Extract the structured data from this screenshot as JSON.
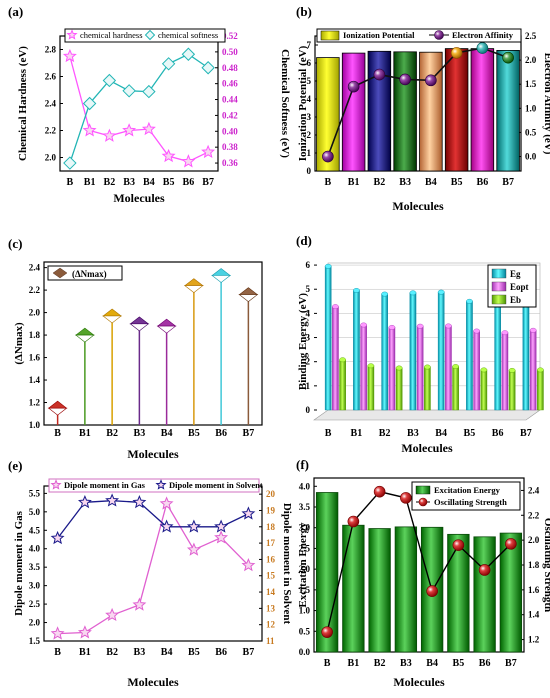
{
  "chart_data": [
    {
      "panel": "(a)",
      "type": "line",
      "categories": [
        "B",
        "B1",
        "B2",
        "B3",
        "B4",
        "B5",
        "B6",
        "B7"
      ],
      "xlabel": "Molecules",
      "ylabel": "Chemical Hardness (eV)",
      "y2label": "Chemical Softness (eV)",
      "ylim": [
        1.9,
        2.9
      ],
      "y2lim": [
        0.35,
        0.52
      ],
      "yticks": [
        "2.0",
        "2.2",
        "2.4",
        "2.6",
        "2.8"
      ],
      "y2ticks": [
        "0.36",
        "0.38",
        "0.40",
        "0.42",
        "0.44",
        "0.46",
        "0.48",
        "0.50",
        "0.52"
      ],
      "legend_position": "top",
      "series": [
        {
          "name": "chemical hardness",
          "axis": "left",
          "color": "#ff55ff",
          "marker": "star",
          "values": [
            2.75,
            2.2,
            2.16,
            2.2,
            2.21,
            2.01,
            1.97,
            2.04
          ]
        },
        {
          "name": "chemical softness",
          "axis": "right",
          "color": "#22b5b5",
          "marker": "diamond",
          "values": [
            0.36,
            0.435,
            0.464,
            0.451,
            0.45,
            0.485,
            0.497,
            0.48
          ]
        }
      ]
    },
    {
      "panel": "(b)",
      "type": "bar",
      "categories": [
        "B",
        "B1",
        "B2",
        "B3",
        "B4",
        "B5",
        "B6",
        "B7"
      ],
      "xlabel": "Molecules",
      "ylabel": "Ionization Potential (eV)",
      "y2label": "Electron Affinity (eV)",
      "ylim": [
        0,
        7.5
      ],
      "y2lim": [
        -0.3,
        2.5
      ],
      "yticks": [
        "0",
        "1",
        "2",
        "3",
        "4",
        "5",
        "6",
        "7"
      ],
      "y2ticks": [
        "0.0",
        "0.5",
        "1.0",
        "1.5",
        "2.0",
        "2.5"
      ],
      "legend_position": "top",
      "series": [
        {
          "name": "Ionization Potential",
          "axis": "left",
          "values": [
            6.3,
            6.55,
            6.65,
            6.62,
            6.6,
            6.8,
            6.8,
            6.7
          ],
          "colors": [
            "#e8e800",
            "#dd22dd",
            "#1a1a8a",
            "#1a7a1a",
            "#f0a070",
            "#b00000",
            "#e020c0",
            "#20a8a8"
          ]
        },
        {
          "name": "Electron Affinity",
          "axis": "right",
          "color": "#111111",
          "marker": "sphere",
          "marker_color": "#8a2a9a",
          "values": [
            0.0,
            1.45,
            1.7,
            1.6,
            1.58,
            2.15,
            2.25,
            2.05
          ],
          "marker_colors": [
            "#7a2a8a",
            "#7a2a8a",
            "#7a2a8a",
            "#7a2a8a",
            "#7a2a8a",
            "#d89a10",
            "#3aa8a8",
            "#3a8a3a"
          ]
        }
      ]
    },
    {
      "panel": "(c)",
      "type": "lollipop",
      "categories": [
        "B",
        "B1",
        "B2",
        "B3",
        "B4",
        "B5",
        "B6",
        "B7"
      ],
      "xlabel": "Molecules",
      "ylabel": "(ΔNmax)",
      "ylim": [
        1.0,
        2.45
      ],
      "yticks": [
        "1.0",
        "1.2",
        "1.4",
        "1.6",
        "1.8",
        "2.0",
        "2.2",
        "2.4"
      ],
      "legend_position": "top-left",
      "series": [
        {
          "name": "(ΔNmax)",
          "values": [
            1.15,
            1.8,
            1.97,
            1.9,
            1.88,
            2.24,
            2.33,
            2.16
          ],
          "colors": [
            "#c0281e",
            "#4a9a20",
            "#d8a000",
            "#6a2a8a",
            "#9a2a9a",
            "#d89a10",
            "#40c8d8",
            "#8a5a3a"
          ]
        }
      ]
    },
    {
      "panel": "(d)",
      "type": "bar",
      "categories": [
        "B",
        "B1",
        "B2",
        "B3",
        "B4",
        "B5",
        "B6",
        "B7"
      ],
      "xlabel": "Molecules",
      "ylabel": "Binding Energy (eV)",
      "ylim": [
        0,
        6.5
      ],
      "yticks": [
        "0",
        "1",
        "2",
        "3",
        "4",
        "5",
        "6"
      ],
      "legend_position": "top-right",
      "series": [
        {
          "name": "Eg",
          "color": "#30c8e0",
          "values": [
            5.95,
            4.95,
            4.8,
            4.85,
            4.88,
            4.5,
            4.4,
            4.55
          ]
        },
        {
          "name": "Eopt",
          "color": "#e070f0",
          "values": [
            4.28,
            3.52,
            3.42,
            3.47,
            3.48,
            3.27,
            3.2,
            3.3
          ]
        },
        {
          "name": "Eb",
          "color": "#90d820",
          "values": [
            2.08,
            1.83,
            1.74,
            1.78,
            1.8,
            1.66,
            1.64,
            1.66
          ]
        }
      ]
    },
    {
      "panel": "(e)",
      "type": "line",
      "categories": [
        "B",
        "B1",
        "B2",
        "B3",
        "B4",
        "B5",
        "B6",
        "B7"
      ],
      "xlabel": "Molecules",
      "ylabel": "Dipole moment in Gas",
      "y2label": "Dipole moment in Solvent",
      "ylim": [
        1.5,
        5.7
      ],
      "y2lim": [
        11,
        20.5
      ],
      "yticks": [
        "1.5",
        "2.0",
        "2.5",
        "3.0",
        "3.5",
        "4.0",
        "4.5",
        "5.0",
        "5.5"
      ],
      "y2ticks": [
        "11",
        "12",
        "13",
        "14",
        "15",
        "16",
        "17",
        "18",
        "19",
        "20"
      ],
      "legend_position": "top",
      "series": [
        {
          "name": "Dipole moment in Gas",
          "axis": "left",
          "color": "#e060d0",
          "marker": "star",
          "values": [
            1.7,
            1.73,
            2.2,
            2.48,
            5.22,
            3.97,
            4.3,
            3.55
          ]
        },
        {
          "name": "Dipole moment in Solvent",
          "axis": "right",
          "color": "#1a1a8a",
          "marker": "star",
          "values": [
            17.3,
            19.5,
            19.6,
            19.5,
            18.0,
            18.0,
            18.0,
            18.8
          ]
        }
      ]
    },
    {
      "panel": "(f)",
      "type": "bar",
      "categories": [
        "B",
        "B1",
        "B2",
        "B3",
        "B4",
        "B5",
        "B6",
        "B7"
      ],
      "xlabel": "Molecules",
      "ylabel": "Excitation Energy",
      "y2label": "Oscillating Strength",
      "ylim": [
        0,
        4.2
      ],
      "y2lim": [
        1.1,
        2.5
      ],
      "yticks": [
        "0.0",
        "0.5",
        "1.0",
        "1.5",
        "2.0",
        "2.5",
        "3.0",
        "3.5",
        "4.0"
      ],
      "y2ticks": [
        "1.2",
        "1.4",
        "1.6",
        "1.8",
        "2.0",
        "2.2",
        "2.4"
      ],
      "legend_position": "top-right",
      "series": [
        {
          "name": "Excitation Energy",
          "axis": "left",
          "color": "#2aa02a",
          "values": [
            3.85,
            3.06,
            2.98,
            3.02,
            3.01,
            2.84,
            2.78,
            2.87
          ]
        },
        {
          "name": "Oscillating Strength",
          "axis": "right",
          "color": "#c02020",
          "marker": "sphere",
          "values": [
            1.26,
            2.15,
            2.39,
            2.34,
            1.59,
            1.96,
            1.76,
            1.97
          ]
        }
      ]
    }
  ]
}
